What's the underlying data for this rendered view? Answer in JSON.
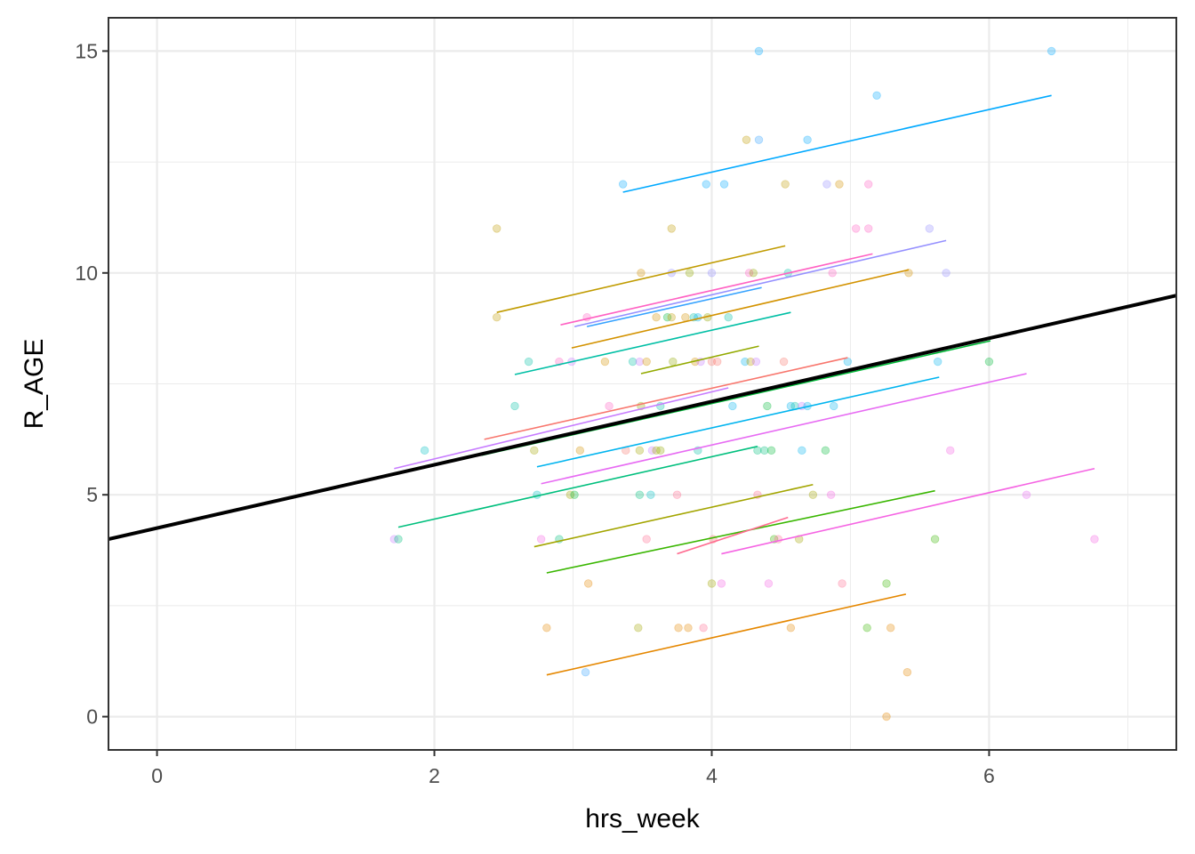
{
  "chart_data": {
    "type": "scatter",
    "title": "",
    "xlabel": "hrs_week",
    "ylabel": "R_AGE",
    "xlim": [
      -0.35,
      7.35
    ],
    "ylim": [
      -0.75,
      15.75
    ],
    "x_ticks": [
      0,
      2,
      4,
      6
    ],
    "x_tick_labels": [
      "0",
      "2",
      "4",
      "6"
    ],
    "y_ticks": [
      0,
      5,
      10,
      15
    ],
    "y_tick_labels": [
      "0",
      "5",
      "10",
      "15"
    ],
    "x_minor": [
      1,
      3,
      5,
      7
    ],
    "y_minor": [
      2.5,
      7.5,
      12.5
    ],
    "grid": true,
    "legend": "none",
    "overall_fit": {
      "name": "overall",
      "color": "#000000",
      "intercept": 4.25,
      "slope": 0.713
    },
    "group_fits": [
      {
        "color": "#00A9FF",
        "x": [
          3.36,
          6.45
        ],
        "y": [
          11.82,
          14.0
        ]
      },
      {
        "color": "#C09B00",
        "x": [
          2.45,
          4.53
        ],
        "y": [
          9.11,
          10.61
        ]
      },
      {
        "color": "#FF61C3",
        "x": [
          2.91,
          5.16
        ],
        "y": [
          8.83,
          10.43
        ]
      },
      {
        "color": "#9590FF",
        "x": [
          3.01,
          5.69
        ],
        "y": [
          8.79,
          10.73
        ]
      },
      {
        "color": "#35A2FF",
        "x": [
          3.1,
          4.36
        ],
        "y": [
          8.79,
          9.67
        ]
      },
      {
        "color": "#D39200",
        "x": [
          2.99,
          5.42
        ],
        "y": [
          8.31,
          10.07
        ]
      },
      {
        "color": "#00BFA5",
        "x": [
          2.58,
          4.57
        ],
        "y": [
          7.71,
          9.11
        ]
      },
      {
        "color": "#93AA00",
        "x": [
          3.49,
          4.34
        ],
        "y": [
          7.73,
          8.35
        ]
      },
      {
        "color": "#F8766D",
        "x": [
          2.36,
          4.98
        ],
        "y": [
          6.25,
          8.09
        ]
      },
      {
        "color": "#C77CFF",
        "x": [
          1.71,
          4.12
        ],
        "y": [
          5.59,
          7.41
        ]
      },
      {
        "color": "#00BA38",
        "x": [
          2.34,
          6.01
        ],
        "y": [
          5.89,
          8.47
        ]
      },
      {
        "color": "#00B4EF",
        "x": [
          2.74,
          5.64
        ],
        "y": [
          5.63,
          7.65
        ]
      },
      {
        "color": "#E76BF3",
        "x": [
          2.77,
          6.27
        ],
        "y": [
          5.25,
          7.73
        ]
      },
      {
        "color": "#00BF7D",
        "x": [
          1.74,
          4.33
        ],
        "y": [
          4.27,
          6.09
        ]
      },
      {
        "color": "#A3A500",
        "x": [
          2.72,
          4.73
        ],
        "y": [
          3.83,
          5.23
        ]
      },
      {
        "color": "#39B600",
        "x": [
          2.81,
          5.61
        ],
        "y": [
          3.24,
          5.09
        ]
      },
      {
        "color": "#FF6C91",
        "x": [
          3.75,
          4.55
        ],
        "y": [
          3.67,
          4.49
        ]
      },
      {
        "color": "#F564E3",
        "x": [
          4.07,
          6.76
        ],
        "y": [
          3.67,
          5.59
        ]
      },
      {
        "color": "#E58700",
        "x": [
          2.81,
          5.4
        ],
        "y": [
          0.94,
          2.76
        ]
      }
    ],
    "points": [
      {
        "x": 4.34,
        "y": 15,
        "color": "#00A9FF"
      },
      {
        "x": 6.45,
        "y": 15,
        "color": "#00A9FF"
      },
      {
        "x": 5.19,
        "y": 14,
        "color": "#00A9FF"
      },
      {
        "x": 4.25,
        "y": 13,
        "color": "#C09B00"
      },
      {
        "x": 4.34,
        "y": 13,
        "color": "#35A2FF"
      },
      {
        "x": 4.69,
        "y": 13,
        "color": "#00A9FF"
      },
      {
        "x": 3.36,
        "y": 12,
        "color": "#00A9FF"
      },
      {
        "x": 3.96,
        "y": 12,
        "color": "#00A9FF"
      },
      {
        "x": 4.09,
        "y": 12,
        "color": "#00A9FF"
      },
      {
        "x": 4.53,
        "y": 12,
        "color": "#C09B00"
      },
      {
        "x": 4.83,
        "y": 12,
        "color": "#9590FF"
      },
      {
        "x": 4.92,
        "y": 12,
        "color": "#D39200"
      },
      {
        "x": 5.13,
        "y": 12,
        "color": "#FF61C3"
      },
      {
        "x": 2.45,
        "y": 11,
        "color": "#C09B00"
      },
      {
        "x": 3.71,
        "y": 11,
        "color": "#C09B00"
      },
      {
        "x": 5.04,
        "y": 11,
        "color": "#FF61C3"
      },
      {
        "x": 5.13,
        "y": 11,
        "color": "#FF61C3"
      },
      {
        "x": 5.57,
        "y": 11,
        "color": "#9590FF"
      },
      {
        "x": 3.49,
        "y": 10,
        "color": "#D39200"
      },
      {
        "x": 3.71,
        "y": 10,
        "color": "#9590FF"
      },
      {
        "x": 3.84,
        "y": 10,
        "color": "#93AA00"
      },
      {
        "x": 4.0,
        "y": 10,
        "color": "#9590FF"
      },
      {
        "x": 4.27,
        "y": 10,
        "color": "#FF61C3"
      },
      {
        "x": 4.3,
        "y": 10,
        "color": "#93AA00"
      },
      {
        "x": 4.55,
        "y": 10,
        "color": "#00BFA5"
      },
      {
        "x": 4.87,
        "y": 10,
        "color": "#FF61C3"
      },
      {
        "x": 5.42,
        "y": 10,
        "color": "#D39200"
      },
      {
        "x": 5.69,
        "y": 10,
        "color": "#9590FF"
      },
      {
        "x": 2.45,
        "y": 9,
        "color": "#C09B00"
      },
      {
        "x": 3.1,
        "y": 9,
        "color": "#FF61C3"
      },
      {
        "x": 3.6,
        "y": 9,
        "color": "#D39200"
      },
      {
        "x": 3.68,
        "y": 9,
        "color": "#00BA38"
      },
      {
        "x": 3.71,
        "y": 9,
        "color": "#C09B00"
      },
      {
        "x": 3.81,
        "y": 9,
        "color": "#D39200"
      },
      {
        "x": 3.87,
        "y": 9,
        "color": "#00BFA5"
      },
      {
        "x": 3.9,
        "y": 9,
        "color": "#00B4EF"
      },
      {
        "x": 3.97,
        "y": 9,
        "color": "#93AA00"
      },
      {
        "x": 4.12,
        "y": 9,
        "color": "#00BFA5"
      },
      {
        "x": 2.68,
        "y": 8,
        "color": "#00BFA5"
      },
      {
        "x": 2.9,
        "y": 8,
        "color": "#FF61C3"
      },
      {
        "x": 2.99,
        "y": 8,
        "color": "#C77CFF"
      },
      {
        "x": 3.23,
        "y": 8,
        "color": "#D39200"
      },
      {
        "x": 3.43,
        "y": 8,
        "color": "#00BFA5"
      },
      {
        "x": 3.48,
        "y": 8,
        "color": "#C77CFF"
      },
      {
        "x": 3.53,
        "y": 8,
        "color": "#D39200"
      },
      {
        "x": 3.72,
        "y": 8,
        "color": "#93AA00"
      },
      {
        "x": 3.88,
        "y": 8,
        "color": "#D39200"
      },
      {
        "x": 3.92,
        "y": 8,
        "color": "#C77CFF"
      },
      {
        "x": 4.0,
        "y": 8,
        "color": "#F8766D"
      },
      {
        "x": 4.04,
        "y": 8,
        "color": "#F8766D"
      },
      {
        "x": 4.24,
        "y": 8,
        "color": "#00B4EF"
      },
      {
        "x": 4.28,
        "y": 8,
        "color": "#C09B00"
      },
      {
        "x": 4.32,
        "y": 8,
        "color": "#C77CFF"
      },
      {
        "x": 4.52,
        "y": 8,
        "color": "#F8766D"
      },
      {
        "x": 4.98,
        "y": 8,
        "color": "#00B4EF"
      },
      {
        "x": 5.63,
        "y": 8,
        "color": "#00B4EF"
      },
      {
        "x": 6.0,
        "y": 8,
        "color": "#00BA38"
      },
      {
        "x": 2.58,
        "y": 7,
        "color": "#00BFA5"
      },
      {
        "x": 3.26,
        "y": 7,
        "color": "#FF61C3"
      },
      {
        "x": 3.49,
        "y": 7,
        "color": "#93AA00"
      },
      {
        "x": 3.63,
        "y": 7,
        "color": "#00BFA5"
      },
      {
        "x": 4.15,
        "y": 7,
        "color": "#00B4EF"
      },
      {
        "x": 4.4,
        "y": 7,
        "color": "#00BA38"
      },
      {
        "x": 4.57,
        "y": 7,
        "color": "#00B4EF"
      },
      {
        "x": 4.6,
        "y": 7,
        "color": "#00BFA5"
      },
      {
        "x": 4.65,
        "y": 7,
        "color": "#C77CFF"
      },
      {
        "x": 4.69,
        "y": 7,
        "color": "#00B4EF"
      },
      {
        "x": 4.88,
        "y": 7,
        "color": "#00B4EF"
      },
      {
        "x": 1.93,
        "y": 6,
        "color": "#00BFC4"
      },
      {
        "x": 2.72,
        "y": 6,
        "color": "#A3A500"
      },
      {
        "x": 3.05,
        "y": 6,
        "color": "#D39200"
      },
      {
        "x": 3.38,
        "y": 6,
        "color": "#F8766D"
      },
      {
        "x": 3.48,
        "y": 6,
        "color": "#A3A500"
      },
      {
        "x": 3.57,
        "y": 6,
        "color": "#C77CFF"
      },
      {
        "x": 3.6,
        "y": 6,
        "color": "#A3A500"
      },
      {
        "x": 3.63,
        "y": 6,
        "color": "#93AA00"
      },
      {
        "x": 3.9,
        "y": 6,
        "color": "#00BFA5"
      },
      {
        "x": 4.33,
        "y": 6,
        "color": "#00BF7D"
      },
      {
        "x": 4.38,
        "y": 6,
        "color": "#00BF7D"
      },
      {
        "x": 4.43,
        "y": 6,
        "color": "#00BA38"
      },
      {
        "x": 4.65,
        "y": 6,
        "color": "#00B4EF"
      },
      {
        "x": 4.82,
        "y": 6,
        "color": "#00BA38"
      },
      {
        "x": 5.72,
        "y": 6,
        "color": "#F564E3"
      },
      {
        "x": 2.74,
        "y": 5,
        "color": "#00BFC4"
      },
      {
        "x": 2.98,
        "y": 5,
        "color": "#A3A500"
      },
      {
        "x": 3.01,
        "y": 5,
        "color": "#00BA38"
      },
      {
        "x": 3.48,
        "y": 5,
        "color": "#00BF7D"
      },
      {
        "x": 3.56,
        "y": 5,
        "color": "#00BFC4"
      },
      {
        "x": 3.75,
        "y": 5,
        "color": "#FF6C91"
      },
      {
        "x": 4.33,
        "y": 5,
        "color": "#FF6C91"
      },
      {
        "x": 4.73,
        "y": 5,
        "color": "#A3A500"
      },
      {
        "x": 4.86,
        "y": 5,
        "color": "#F564E3"
      },
      {
        "x": 6.27,
        "y": 5,
        "color": "#E76BF3"
      },
      {
        "x": 1.71,
        "y": 4,
        "color": "#C77CFF"
      },
      {
        "x": 1.74,
        "y": 4,
        "color": "#00BF7D"
      },
      {
        "x": 2.77,
        "y": 4,
        "color": "#F564E3"
      },
      {
        "x": 2.9,
        "y": 4,
        "color": "#00BF7D"
      },
      {
        "x": 3.53,
        "y": 4,
        "color": "#FF6C91"
      },
      {
        "x": 4.01,
        "y": 4,
        "color": "#F8766D"
      },
      {
        "x": 4.45,
        "y": 4,
        "color": "#39B600"
      },
      {
        "x": 4.48,
        "y": 4,
        "color": "#FF6C91"
      },
      {
        "x": 4.63,
        "y": 4,
        "color": "#A3A500"
      },
      {
        "x": 5.61,
        "y": 4,
        "color": "#39B600"
      },
      {
        "x": 6.76,
        "y": 4,
        "color": "#F564E3"
      },
      {
        "x": 3.11,
        "y": 3,
        "color": "#E58700"
      },
      {
        "x": 4.0,
        "y": 3,
        "color": "#A3A500"
      },
      {
        "x": 4.07,
        "y": 3,
        "color": "#F564E3"
      },
      {
        "x": 4.41,
        "y": 3,
        "color": "#F564E3"
      },
      {
        "x": 4.94,
        "y": 3,
        "color": "#FF6C91"
      },
      {
        "x": 5.26,
        "y": 3,
        "color": "#39B600"
      },
      {
        "x": 2.81,
        "y": 2,
        "color": "#E58700"
      },
      {
        "x": 3.47,
        "y": 2,
        "color": "#A3A500"
      },
      {
        "x": 3.76,
        "y": 2,
        "color": "#E58700"
      },
      {
        "x": 3.83,
        "y": 2,
        "color": "#E58700"
      },
      {
        "x": 3.94,
        "y": 2,
        "color": "#FF6C91"
      },
      {
        "x": 4.57,
        "y": 2,
        "color": "#E58700"
      },
      {
        "x": 5.12,
        "y": 2,
        "color": "#39B600"
      },
      {
        "x": 5.29,
        "y": 2,
        "color": "#E58700"
      },
      {
        "x": 3.09,
        "y": 1,
        "color": "#35A2FF"
      },
      {
        "x": 5.41,
        "y": 1,
        "color": "#E58700"
      },
      {
        "x": 5.26,
        "y": 0,
        "color": "#E58700"
      }
    ]
  }
}
